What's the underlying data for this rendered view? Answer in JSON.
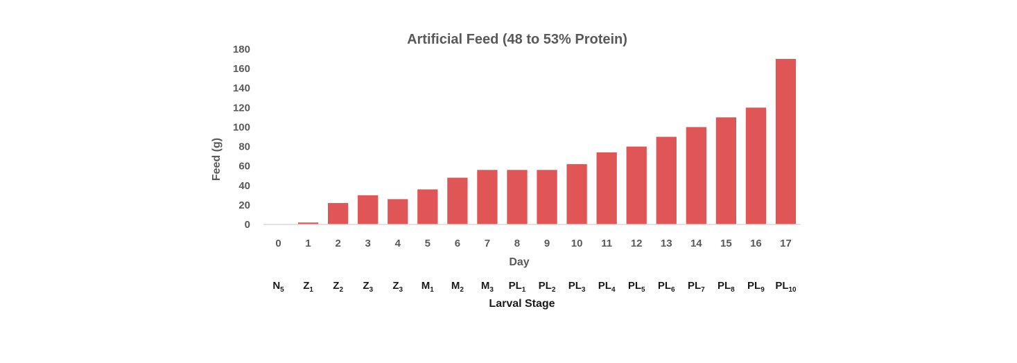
{
  "chart_data": {
    "type": "bar",
    "title": "Artificial Feed (48 to 53% Protein)",
    "xlabel": "Day",
    "ylabel": "Feed (g)",
    "ylim": [
      0,
      180
    ],
    "yticks": [
      0,
      20,
      40,
      60,
      80,
      100,
      120,
      140,
      160,
      180
    ],
    "grid": false,
    "categories": [
      "0",
      "1",
      "2",
      "3",
      "4",
      "5",
      "6",
      "7",
      "8",
      "9",
      "10",
      "11",
      "12",
      "13",
      "14",
      "15",
      "16",
      "17"
    ],
    "values": [
      0,
      2,
      22,
      30,
      26,
      36,
      48,
      56,
      56,
      56,
      62,
      74,
      80,
      90,
      100,
      110,
      120,
      170
    ],
    "secondary_axis": {
      "label": "Larval Stage",
      "stages": [
        {
          "base": "N",
          "sub": "5"
        },
        {
          "base": "Z",
          "sub": "1"
        },
        {
          "base": "Z",
          "sub": "2"
        },
        {
          "base": "Z",
          "sub": "3"
        },
        {
          "base": "Z",
          "sub": "3"
        },
        {
          "base": "M",
          "sub": "1"
        },
        {
          "base": "M",
          "sub": "2"
        },
        {
          "base": "M",
          "sub": "3"
        },
        {
          "base": "PL",
          "sub": "1"
        },
        {
          "base": "PL",
          "sub": "2"
        },
        {
          "base": "PL",
          "sub": "3"
        },
        {
          "base": "PL",
          "sub": "4"
        },
        {
          "base": "PL",
          "sub": "5"
        },
        {
          "base": "PL",
          "sub": "6"
        },
        {
          "base": "PL",
          "sub": "7"
        },
        {
          "base": "PL",
          "sub": "8"
        },
        {
          "base": "PL",
          "sub": "9"
        },
        {
          "base": "PL",
          "sub": "10"
        }
      ]
    },
    "colors": {
      "bar": "#e05555",
      "axis": "#d9d9d9"
    }
  }
}
